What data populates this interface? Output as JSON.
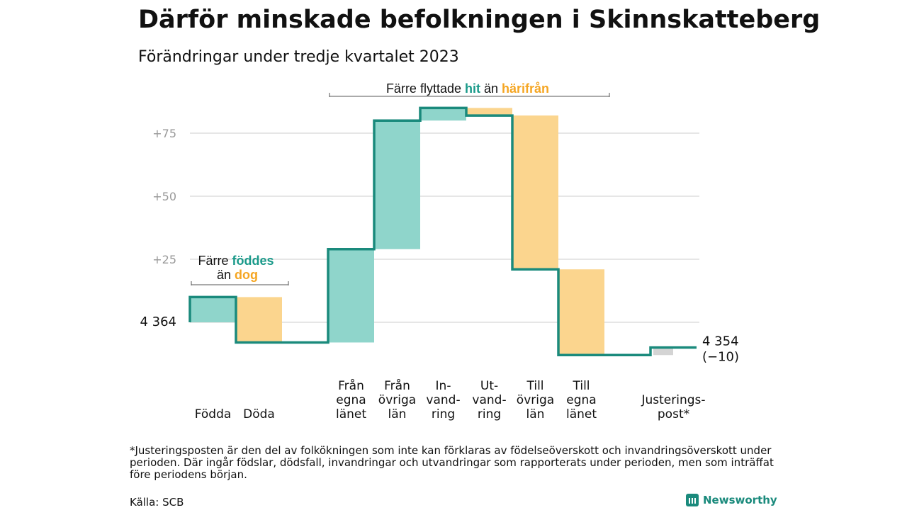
{
  "title": "Därför minskade befolkningen i Skinnskatteberg",
  "subtitle": "Förändringar under tredje kvartalet 2023",
  "annotations": {
    "birth": {
      "prefix": "Färre ",
      "hit": "föddes",
      "mid": "än ",
      "away": "dog"
    },
    "move": {
      "prefix": "Färre flyttade ",
      "hit": "hit",
      "mid": " än ",
      "away": "härifrån"
    }
  },
  "start_label": "4  364",
  "end_label": {
    "line1": "4 354",
    "line2": "(−10)"
  },
  "footnote": "*Justeringsposten är den del av folkökningen som inte kan förklaras av födelseöverskott och invandringsöverskott under perioden. Där ingår födslar, dödsfall, invandringar och utvandringar som rapporterats under perioden, men som inträffat före periodens början.",
  "source": "Källa: SCB",
  "brand": "Newsworthy",
  "colors": {
    "increase": "#8fd5cb",
    "decrease": "#fbd58e",
    "adjust": "#d4d4d4",
    "line": "#1a8a7c",
    "hit": "#1a9a8a",
    "away": "#f5a623",
    "grid": "#dddddd",
    "tick": "#999999"
  },
  "chart_data": {
    "type": "waterfall",
    "start": 0,
    "y_ticks": [
      25,
      50,
      75
    ],
    "y_tick_labels": [
      "+25",
      "+50",
      "+75"
    ],
    "steps": [
      {
        "label_lines": [
          "Födda"
        ],
        "delta": 10,
        "kind": "increase"
      },
      {
        "label_lines": [
          "Döda"
        ],
        "delta": -18,
        "kind": "decrease"
      },
      {
        "label_lines": [],
        "delta": 0,
        "kind": "gap"
      },
      {
        "label_lines": [
          "Från",
          "egna",
          "länet"
        ],
        "delta": 37,
        "kind": "increase"
      },
      {
        "label_lines": [
          "Från",
          "övriga",
          "län"
        ],
        "delta": 51,
        "kind": "increase"
      },
      {
        "label_lines": [
          "In-",
          "vand-",
          "ring"
        ],
        "delta": 5,
        "kind": "increase"
      },
      {
        "label_lines": [
          "Ut-",
          "vand-",
          "ring"
        ],
        "delta": -3,
        "kind": "decrease"
      },
      {
        "label_lines": [
          "Till",
          "övriga",
          "län"
        ],
        "delta": -61,
        "kind": "decrease"
      },
      {
        "label_lines": [
          "Till",
          "egna",
          "länet"
        ],
        "delta": -34,
        "kind": "decrease"
      },
      {
        "label_lines": [],
        "delta": 0,
        "kind": "gap"
      },
      {
        "label_lines": [
          "Justerings-",
          "post*"
        ],
        "delta": 3,
        "kind": "adjust"
      }
    ],
    "start_value": 4364,
    "end_value": 4354,
    "net_change": -10
  }
}
